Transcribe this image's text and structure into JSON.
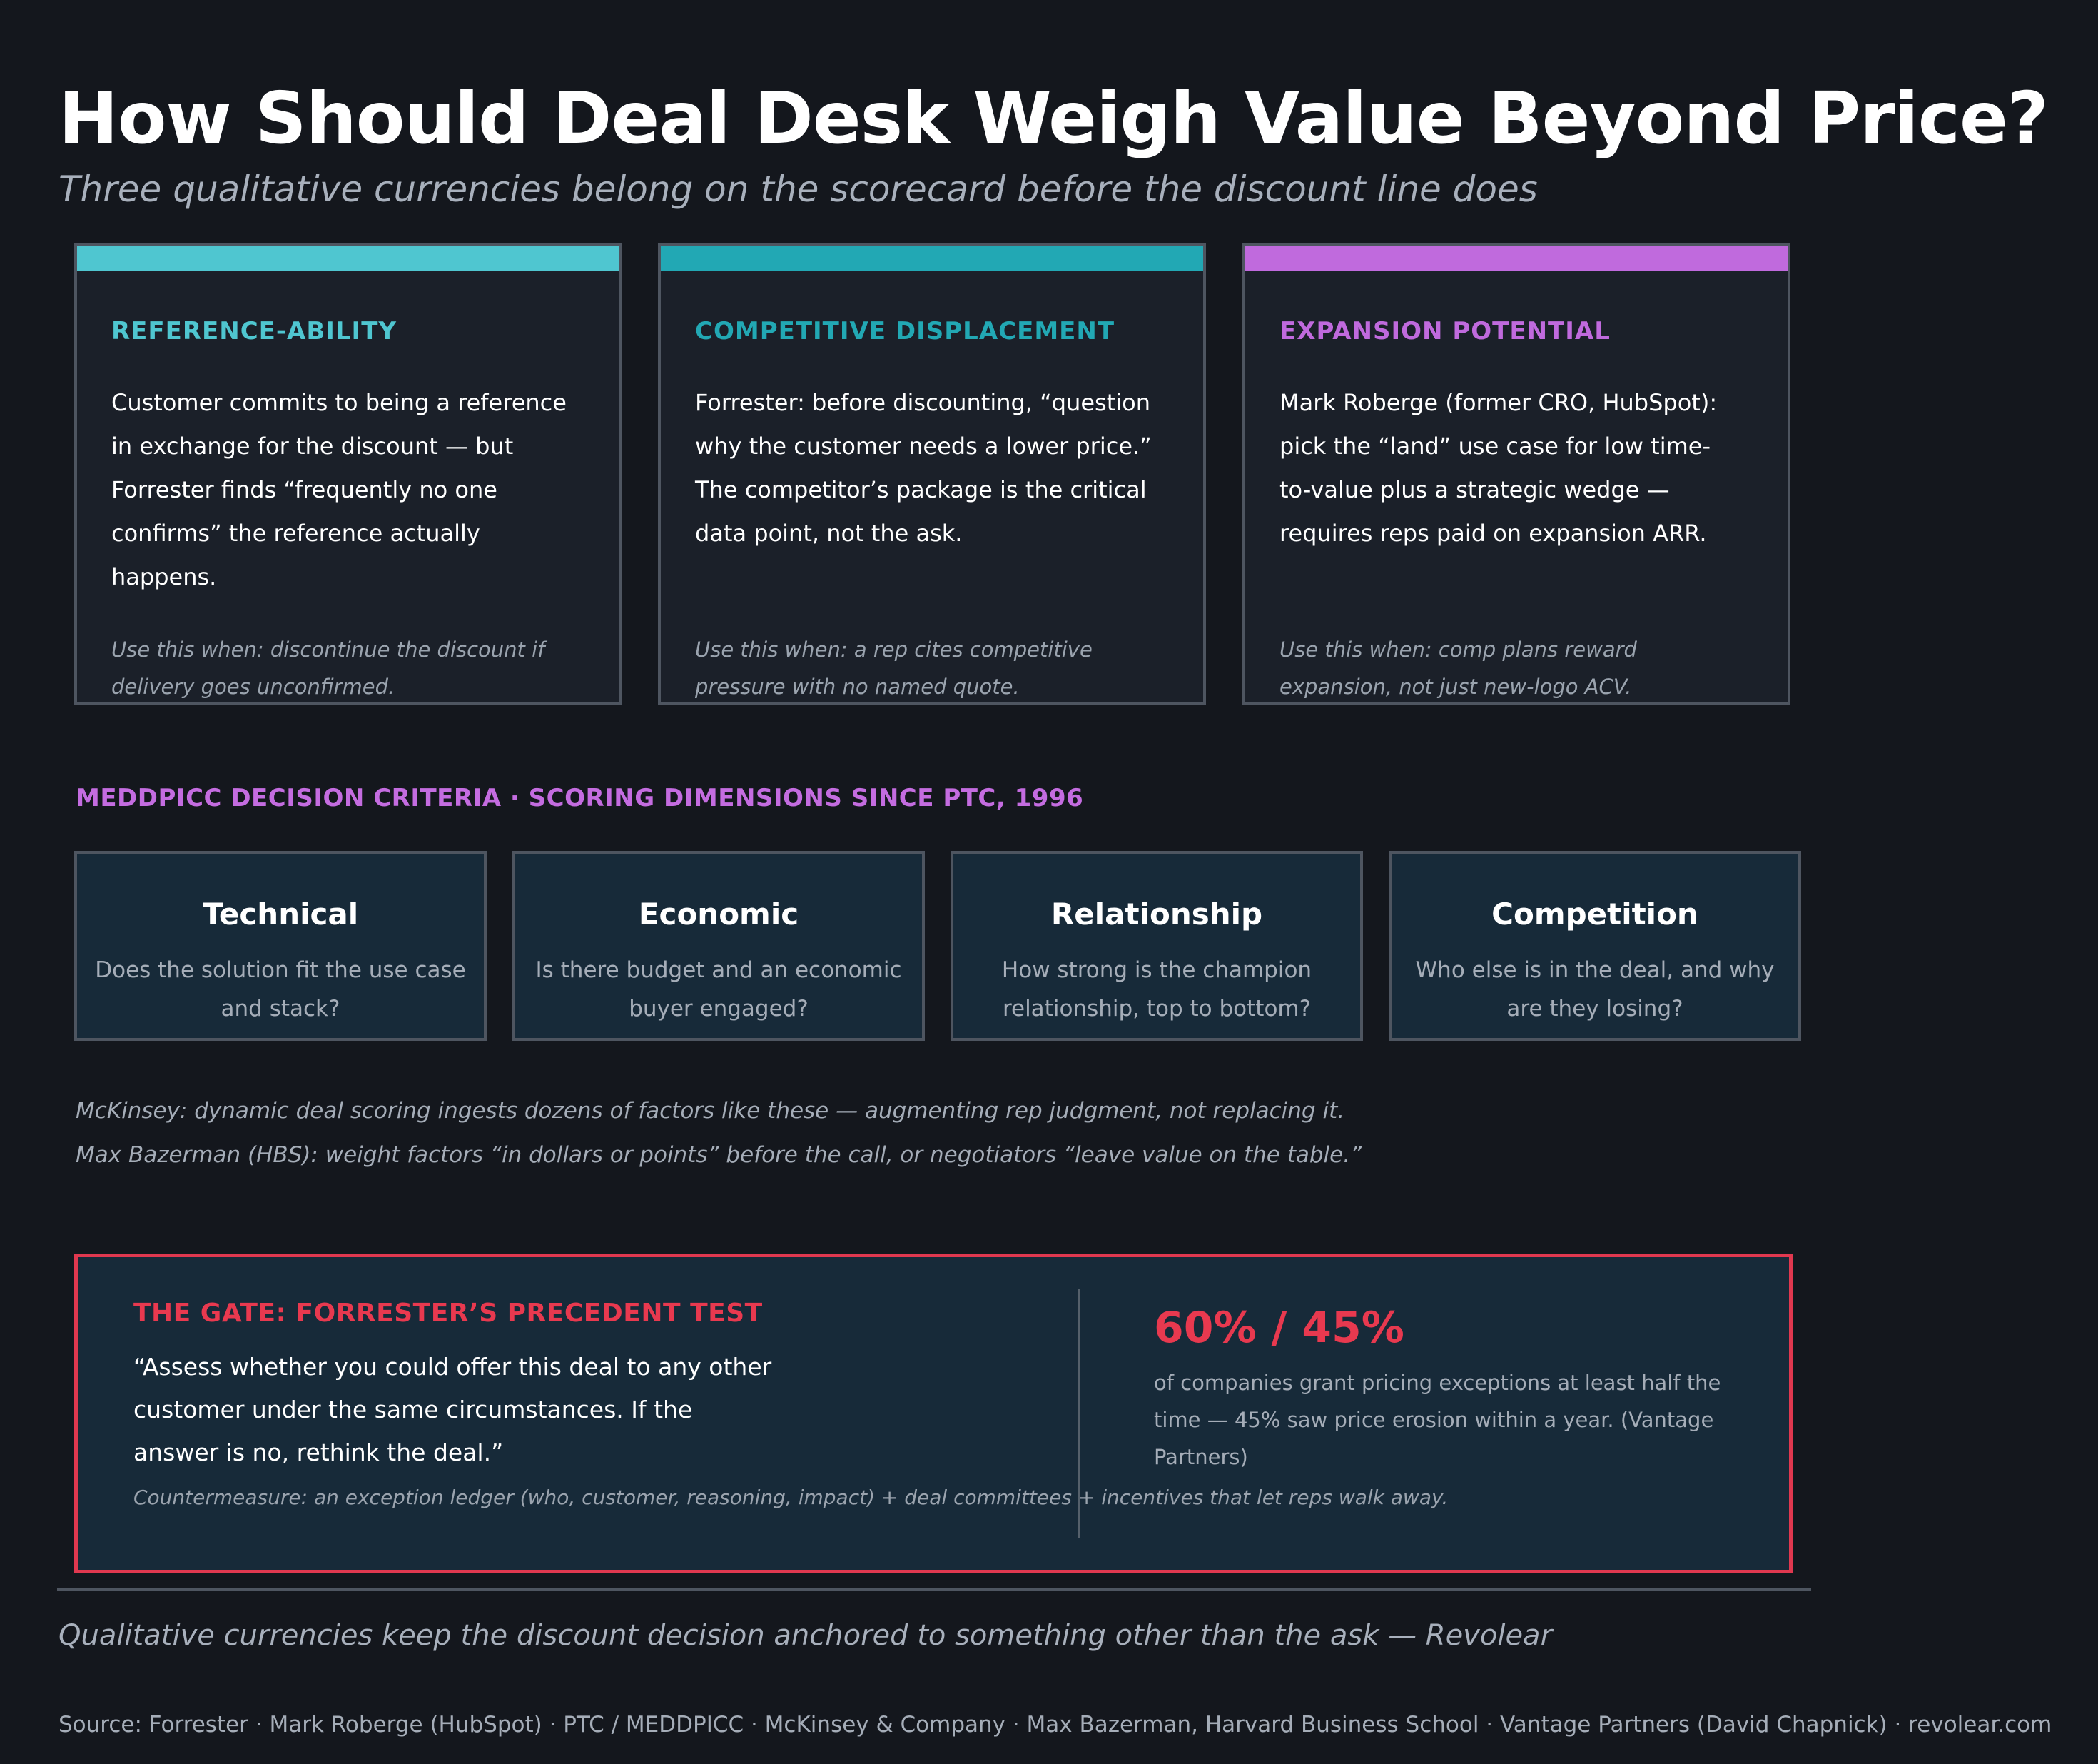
{
  "header": {
    "title": "How Should Deal Desk Weigh Value Beyond Price?",
    "subtitle": "Three qualitative currencies belong on the scorecard before the discount line does"
  },
  "cards": [
    {
      "title": "REFERENCE-ABILITY",
      "accent": "#4fc6d0",
      "body": "Customer commits to being a reference in exchange for the discount — but Forrester finds “frequently no one confirms” the reference actually happens.",
      "usage": "Use this when: discontinue the discount if delivery goes unconfirmed."
    },
    {
      "title": "COMPETITIVE DISPLACEMENT",
      "accent": "#22a8b4",
      "body": "Forrester: before discounting, “question why the customer needs a lower price.” The competitor’s package is the critical data point, not the ask.",
      "usage": "Use this when: a rep cites competitive pressure with no named quote."
    },
    {
      "title": "EXPANSION POTENTIAL",
      "accent": "#c06add",
      "body": "Mark Roberge (former CRO, HubSpot): pick the “land” use case for low time-to-value plus a strategic wedge — requires reps paid on expansion ARR.",
      "usage": "Use this when: comp plans reward expansion, not just new-logo ACV."
    }
  ],
  "criteria": {
    "label": "MEDDPICC DECISION CRITERIA · SCORING DIMENSIONS SINCE PTC, 1996",
    "items": [
      {
        "name": "Technical",
        "desc": "Does the solution fit the use case and stack?"
      },
      {
        "name": "Economic",
        "desc": "Is there budget and an economic buyer engaged?"
      },
      {
        "name": "Relationship",
        "desc": "How strong is the champion relationship, top to bottom?"
      },
      {
        "name": "Competition",
        "desc": "Who else is in the deal, and why are they losing?"
      }
    ]
  },
  "notes": [
    "McKinsey: dynamic deal scoring ingests dozens of factors like these — augmenting rep judgment, not replacing it.",
    "Max Bazerman (HBS): weight factors “in dollars or points” before the call, or negotiators “leave value on the table.”"
  ],
  "gate": {
    "title": "THE GATE: FORRESTER’S PRECEDENT TEST",
    "quote": "“Assess whether you could offer this deal to any other customer under the same circumstances. If the answer is no, rethink the deal.”",
    "countermeasure": "Countermeasure: an exception ledger (who, customer, reasoning, impact) + deal committees + incentives that let reps walk away.",
    "stat": "60% / 45%",
    "stat_desc": "of companies grant pricing exceptions at least half the time — 45% saw price erosion within a year. (Vantage Partners)",
    "accent": "#e8394f"
  },
  "footer": {
    "tagline": "Qualitative currencies keep the discount decision anchored to something other than the ask — Revolear",
    "source": "Source: Forrester · Mark Roberge (HubSpot) · PTC / MEDDPICC · McKinsey & Company · Max Bazerman, Harvard Business School · Vantage Partners (David Chapnick) · revolear.com"
  }
}
